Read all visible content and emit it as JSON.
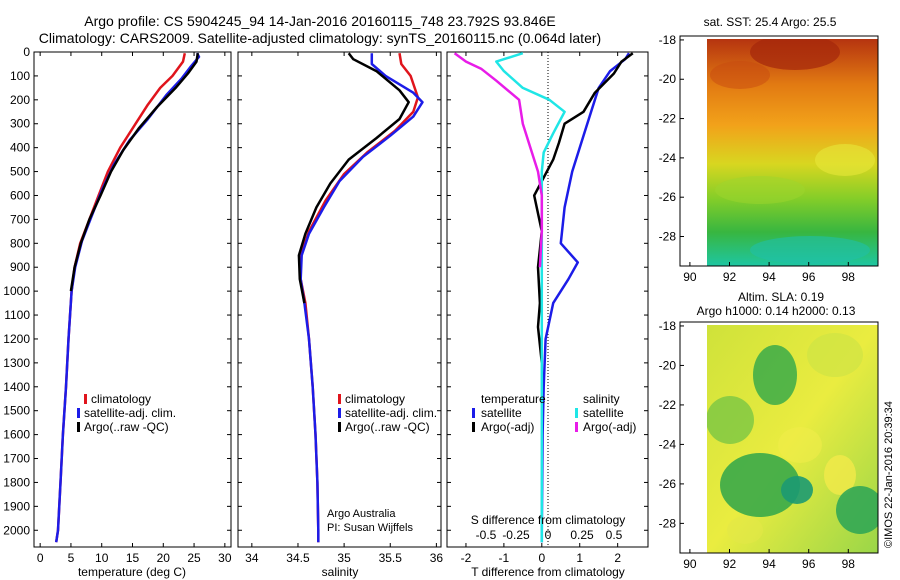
{
  "header": {
    "line1": "Argo profile: CS 5904245_94 14-Jan-2016 20160115_748 23.792S 93.846E",
    "line2": "Climatology: CARS2009. Satellite-adjusted climatology: synTS_20160115.nc (0.064d later)"
  },
  "footer": {
    "stamp": "©IMOS 22-Jan-2016 20:39:34",
    "credit1": "Argo Australia",
    "credit2": "PI: Susan Wijffels"
  },
  "colors": {
    "red": "#e0141c",
    "blue": "#1c1ce8",
    "black": "#000000",
    "cyan": "#1fe6e6",
    "magenta": "#e81ce8"
  },
  "chart_data": [
    {
      "type": "line",
      "xlabel": "temperature (deg C)",
      "ylim": [
        2070,
        0
      ],
      "xlim": [
        -1,
        31
      ],
      "xticks": [
        0,
        5,
        10,
        15,
        20,
        25,
        30
      ],
      "yticks": [
        0,
        100,
        200,
        300,
        400,
        500,
        600,
        700,
        800,
        900,
        1000,
        1100,
        1200,
        1300,
        1400,
        1500,
        1600,
        1700,
        1800,
        1900,
        2000
      ],
      "legend": [
        "climatology",
        "satellite-adj. clim.",
        "Argo(..raw -QC)"
      ],
      "series": [
        {
          "name": "climatology",
          "color": "red",
          "points": [
            [
              23.5,
              5
            ],
            [
              23.2,
              40
            ],
            [
              21.5,
              100
            ],
            [
              19.5,
              150
            ],
            [
              17.5,
              220
            ],
            [
              15.5,
              300
            ],
            [
              13,
              400
            ],
            [
              11,
              500
            ],
            [
              9.5,
              600
            ],
            [
              8,
              700
            ],
            [
              6.5,
              800
            ],
            [
              5.6,
              900
            ],
            [
              5.1,
              1000
            ],
            [
              4.6,
              1200
            ],
            [
              4.2,
              1400
            ],
            [
              3.7,
              1600
            ],
            [
              3.3,
              1800
            ],
            [
              2.9,
              2000
            ],
            [
              2.6,
              2050
            ]
          ]
        },
        {
          "name": "satellite-adj. clim.",
          "color": "blue",
          "points": [
            [
              25.5,
              5
            ],
            [
              25.8,
              20
            ],
            [
              24.5,
              60
            ],
            [
              23,
              110
            ],
            [
              20.5,
              180
            ],
            [
              17.5,
              280
            ],
            [
              14.5,
              370
            ],
            [
              12,
              470
            ],
            [
              10,
              580
            ],
            [
              8.3,
              690
            ],
            [
              6.8,
              790
            ],
            [
              5.7,
              900
            ],
            [
              5.1,
              1000
            ],
            [
              4.6,
              1200
            ],
            [
              4.2,
              1400
            ],
            [
              3.7,
              1600
            ],
            [
              3.3,
              1800
            ],
            [
              2.9,
              2000
            ],
            [
              2.6,
              2050
            ]
          ]
        },
        {
          "name": "Argo(..raw -QC)",
          "color": "black",
          "points": [
            [
              25.6,
              5
            ],
            [
              25.4,
              40
            ],
            [
              24,
              90
            ],
            [
              22,
              150
            ],
            [
              19,
              230
            ],
            [
              16,
              320
            ],
            [
              13.5,
              410
            ],
            [
              11.5,
              500
            ],
            [
              9.8,
              600
            ],
            [
              8,
              700
            ],
            [
              6.6,
              800
            ],
            [
              5.6,
              900
            ],
            [
              5,
              1000
            ]
          ]
        }
      ]
    },
    {
      "type": "line",
      "xlabel": "salinity",
      "ylim": [
        2070,
        0
      ],
      "xlim": [
        33.85,
        36.05
      ],
      "xticks": [
        34,
        34.5,
        35,
        35.5,
        36
      ],
      "xticklabels": [
        "34",
        "34.5",
        "35",
        "35.5",
        "36"
      ],
      "legend": [
        "climatology",
        "satellite-adj. clim.",
        "Argo(..raw -QC)"
      ],
      "series": [
        {
          "name": "climatology",
          "color": "red",
          "points": [
            [
              35.6,
              5
            ],
            [
              35.62,
              50
            ],
            [
              35.72,
              100
            ],
            [
              35.8,
              190
            ],
            [
              35.75,
              250
            ],
            [
              35.55,
              330
            ],
            [
              35.25,
              420
            ],
            [
              35,
              510
            ],
            [
              34.8,
              620
            ],
            [
              34.62,
              750
            ],
            [
              34.53,
              850
            ],
            [
              34.53,
              950
            ],
            [
              34.58,
              1050
            ],
            [
              34.62,
              1200
            ],
            [
              34.66,
              1400
            ],
            [
              34.69,
              1600
            ],
            [
              34.71,
              1800
            ],
            [
              34.72,
              2000
            ],
            [
              34.72,
              2050
            ]
          ]
        },
        {
          "name": "satellite-adj. clim.",
          "color": "blue",
          "points": [
            [
              35.3,
              5
            ],
            [
              35.3,
              50
            ],
            [
              35.45,
              100
            ],
            [
              35.75,
              170
            ],
            [
              35.85,
              210
            ],
            [
              35.75,
              270
            ],
            [
              35.5,
              350
            ],
            [
              35.2,
              440
            ],
            [
              34.95,
              540
            ],
            [
              34.78,
              650
            ],
            [
              34.62,
              760
            ],
            [
              34.54,
              850
            ],
            [
              34.53,
              950
            ],
            [
              34.57,
              1050
            ],
            [
              34.62,
              1200
            ],
            [
              34.66,
              1400
            ],
            [
              34.69,
              1600
            ],
            [
              34.71,
              1800
            ],
            [
              34.72,
              2000
            ],
            [
              34.72,
              2050
            ]
          ]
        },
        {
          "name": "Argo(..raw -QC)",
          "color": "black",
          "points": [
            [
              35.05,
              5
            ],
            [
              35.1,
              30
            ],
            [
              35.35,
              80
            ],
            [
              35.6,
              160
            ],
            [
              35.7,
              210
            ],
            [
              35.6,
              280
            ],
            [
              35.35,
              360
            ],
            [
              35.05,
              450
            ],
            [
              34.85,
              550
            ],
            [
              34.7,
              650
            ],
            [
              34.58,
              760
            ],
            [
              34.51,
              850
            ],
            [
              34.52,
              950
            ],
            [
              34.57,
              1050
            ]
          ]
        }
      ]
    },
    {
      "type": "line",
      "xlabel": "T difference from climatology",
      "xlabel2": "S difference from climatology",
      "ylim": [
        2070,
        0
      ],
      "xlim": [
        -2.5,
        2.8
      ],
      "xticks": [
        -2,
        -1,
        0,
        1,
        2
      ],
      "xticklabels": [
        "-2",
        "-1",
        "0",
        "1",
        "2"
      ],
      "sticks": [
        "-0.5",
        "-0.25",
        "0",
        "0.25",
        "0.5"
      ],
      "legend_titles": [
        "temperature",
        "salinity"
      ],
      "legend": [
        "satellite",
        "Argo(-adj)",
        "satellite",
        "Argo(-adj)"
      ],
      "series": [
        {
          "name": "satellite",
          "group": "temperature",
          "color": "blue",
          "points": [
            [
              2.3,
              5
            ],
            [
              2.2,
              30
            ],
            [
              1.8,
              80
            ],
            [
              1.5,
              150
            ],
            [
              1.3,
              250
            ],
            [
              1.1,
              350
            ],
            [
              0.8,
              500
            ],
            [
              0.6,
              650
            ],
            [
              0.5,
              800
            ],
            [
              0.95,
              880
            ],
            [
              0.7,
              950
            ],
            [
              0.3,
              1050
            ],
            [
              0.1,
              1200
            ],
            [
              0.05,
              1400
            ],
            [
              0.02,
              1600
            ],
            [
              0.01,
              1800
            ],
            [
              0,
              2000
            ],
            [
              0,
              2050
            ]
          ]
        },
        {
          "name": "Argo(-adj)",
          "group": "temperature",
          "color": "black",
          "points": [
            [
              2.4,
              5
            ],
            [
              2.1,
              40
            ],
            [
              1.9,
              90
            ],
            [
              1.4,
              170
            ],
            [
              1.1,
              250
            ],
            [
              0.6,
              300
            ],
            [
              0.45,
              380
            ],
            [
              0.3,
              450
            ],
            [
              -0.2,
              600
            ],
            [
              0,
              750
            ],
            [
              -0.1,
              900
            ],
            [
              -0.05,
              1050
            ],
            [
              -0.1,
              1150
            ],
            [
              0,
              1300
            ]
          ]
        },
        {
          "name": "satellite",
          "group": "salinity",
          "color": "cyan",
          "points": [
            [
              -0.5,
              5
            ],
            [
              -1.2,
              40
            ],
            [
              -1,
              80
            ],
            [
              -0.5,
              150
            ],
            [
              0.2,
              200
            ],
            [
              0.6,
              250
            ],
            [
              0.3,
              340
            ],
            [
              0.05,
              420
            ],
            [
              0,
              500
            ],
            [
              0,
              800
            ],
            [
              0,
              1200
            ],
            [
              0,
              1600
            ],
            [
              0,
              2000
            ],
            [
              0,
              2050
            ]
          ]
        },
        {
          "name": "Argo(-adj)",
          "group": "salinity",
          "color": "magenta",
          "points": [
            [
              -2.3,
              5
            ],
            [
              -2,
              40
            ],
            [
              -1.6,
              70
            ],
            [
              -1.2,
              120
            ],
            [
              -0.6,
              200
            ],
            [
              -0.5,
              300
            ],
            [
              -0.3,
              400
            ],
            [
              -0.1,
              500
            ],
            [
              0,
              600
            ],
            [
              0,
              750
            ],
            [
              -0.05,
              900
            ]
          ]
        }
      ]
    },
    {
      "type": "heatmap",
      "title": "sat. SST: 25.4 Argo: 25.5",
      "xlim": [
        89.5,
        99.5
      ],
      "ylim": [
        -29.5,
        -17.8
      ],
      "xticks": [
        90,
        92,
        94,
        96,
        98
      ],
      "yticks": [
        -28,
        -26,
        -24,
        -22,
        -20,
        -18
      ]
    },
    {
      "type": "heatmap",
      "title": "Altim. SLA: 0.19",
      "subtitle": "Argo h1000: 0.14 h2000: 0.13",
      "xlim": [
        89.5,
        99.5
      ],
      "ylim": [
        -29.5,
        -17.8
      ],
      "xticks": [
        90,
        92,
        94,
        96,
        98
      ],
      "yticks": [
        -28,
        -26,
        -24,
        -22,
        -20,
        -18
      ]
    }
  ]
}
